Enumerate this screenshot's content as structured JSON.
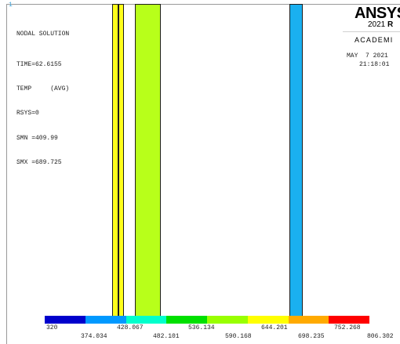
{
  "window_number": "1",
  "info": {
    "title": "NODAL SOLUTION",
    "lines": [
      "TIME=62.6155",
      "TEMP     (AVG)",
      "RSYS=0",
      "SMN =409.99",
      "SMX =689.725"
    ]
  },
  "logo": {
    "brand": "ANSYS",
    "version_prefix": "2021",
    "version_suffix": "R",
    "edition": "ACADEMI"
  },
  "timestamp": {
    "date": "MAY  7 2021",
    "time": "21:18:01"
  },
  "contour_colors": [
    "#0000cc",
    "#0099ff",
    "#00ffcc",
    "#00e000",
    "#99ff00",
    "#ffff00",
    "#ffaa00",
    "#ff0000"
  ],
  "legend": {
    "row1": [
      "320",
      "428.067",
      "536.134",
      "644.201",
      "752.268"
    ],
    "row2": [
      "374.034",
      "482.101",
      "590.168",
      "698.235",
      "806.302"
    ]
  }
}
